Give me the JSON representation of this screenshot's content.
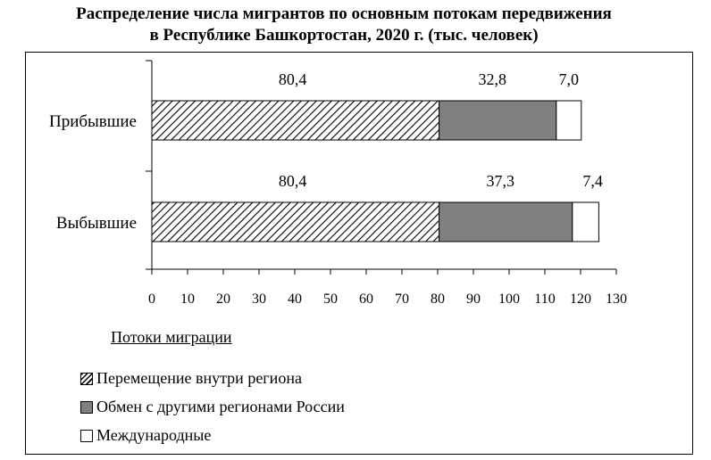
{
  "title_line1": "Распределение числа мигрантов по основным потокам передвижения",
  "title_line2": "в Республике Башкортостан, 2020 г. (тыс. человек)",
  "legend": {
    "title": "Потоки миграции",
    "items": [
      {
        "label": "Перемещение внутри региона",
        "style": "hatch"
      },
      {
        "label": "Обмен с другими регионами России",
        "style": "gray",
        "color": "#808080"
      },
      {
        "label": "Международные",
        "style": "white",
        "color": "#ffffff"
      }
    ]
  },
  "chart_data": {
    "type": "bar",
    "orientation": "horizontal",
    "stacked": true,
    "title": "Распределение числа мигрантов по основным потокам передвижения в Республике Башкортостан, 2020 г. (тыс. человек)",
    "categories": [
      "Прибывшие",
      "Выбывшие"
    ],
    "series": [
      {
        "name": "Перемещение внутри региона",
        "values": [
          80.4,
          80.4
        ],
        "labels": [
          "80,4",
          "80,4"
        ]
      },
      {
        "name": "Обмен с другими регионами России",
        "values": [
          32.8,
          37.3
        ],
        "labels": [
          "32,8",
          "37,3"
        ]
      },
      {
        "name": "Международные",
        "values": [
          7.0,
          7.4
        ],
        "labels": [
          "7,0",
          "7,4"
        ]
      }
    ],
    "xlim": [
      0,
      130
    ],
    "xticks": [
      0,
      10,
      20,
      30,
      40,
      50,
      60,
      70,
      80,
      90,
      100,
      110,
      120,
      130
    ],
    "grid": false,
    "legend_position": "bottom-left"
  }
}
